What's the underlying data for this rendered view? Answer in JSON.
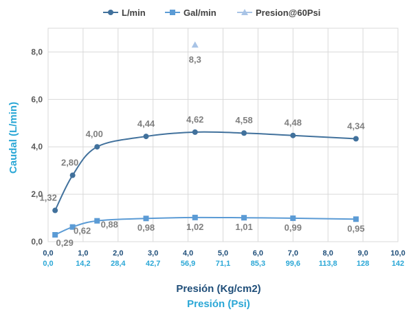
{
  "chart_data": {
    "type": "line",
    "title": "",
    "ylabel": "Caudal (L/min)",
    "xlabel": "Presión (Kg/cm2)",
    "xlabel_secondary": "Presión (Psi)",
    "xlim": [
      0,
      10
    ],
    "ylim": [
      0,
      9
    ],
    "grid": true,
    "legend_position": "top",
    "y_ticks": [
      "0,0",
      "2,0",
      "4,0",
      "6,0",
      "8,0"
    ],
    "y_tick_values": [
      0,
      2,
      4,
      6,
      8
    ],
    "x_ticks": [
      "0,0",
      "1,0",
      "2,0",
      "3,0",
      "4,0",
      "5,0",
      "6,0",
      "7,0",
      "8,0",
      "9,0",
      "10,0"
    ],
    "x_tick_values": [
      0,
      1,
      2,
      3,
      4,
      5,
      6,
      7,
      8,
      9,
      10
    ],
    "x_ticks_secondary": [
      "0,0",
      "14,2",
      "28,4",
      "42,7",
      "56,9",
      "71,1",
      "85,3",
      "99,6",
      "113,8",
      "128",
      "142"
    ],
    "series": [
      {
        "name": "L/min",
        "color": "#41719c",
        "marker": "circle",
        "x": [
          0.2,
          0.7,
          1.4,
          2.8,
          4.2,
          5.6,
          7.0,
          8.8
        ],
        "values": [
          1.32,
          2.8,
          4.0,
          4.44,
          4.62,
          4.58,
          4.48,
          4.34
        ],
        "labels": [
          "1,32",
          "2,80",
          "4,00",
          "4,44",
          "4,62",
          "4,58",
          "4,48",
          "4,34"
        ]
      },
      {
        "name": "Gal/min",
        "color": "#5b9bd5",
        "marker": "square",
        "x": [
          0.2,
          0.7,
          1.4,
          2.8,
          4.2,
          5.6,
          7.0,
          8.8
        ],
        "values": [
          0.29,
          0.62,
          0.88,
          0.98,
          1.02,
          1.01,
          0.99,
          0.95
        ],
        "labels": [
          "0,29",
          "0,62",
          "0,88",
          "0,98",
          "1,02",
          "1,01",
          "0,99",
          "0,95"
        ]
      },
      {
        "name": "Presion@60Psi",
        "color": "#a9c4e6",
        "marker": "triangle",
        "x": [
          4.2
        ],
        "values": [
          8.3
        ],
        "labels": [
          "8,3"
        ]
      }
    ]
  }
}
